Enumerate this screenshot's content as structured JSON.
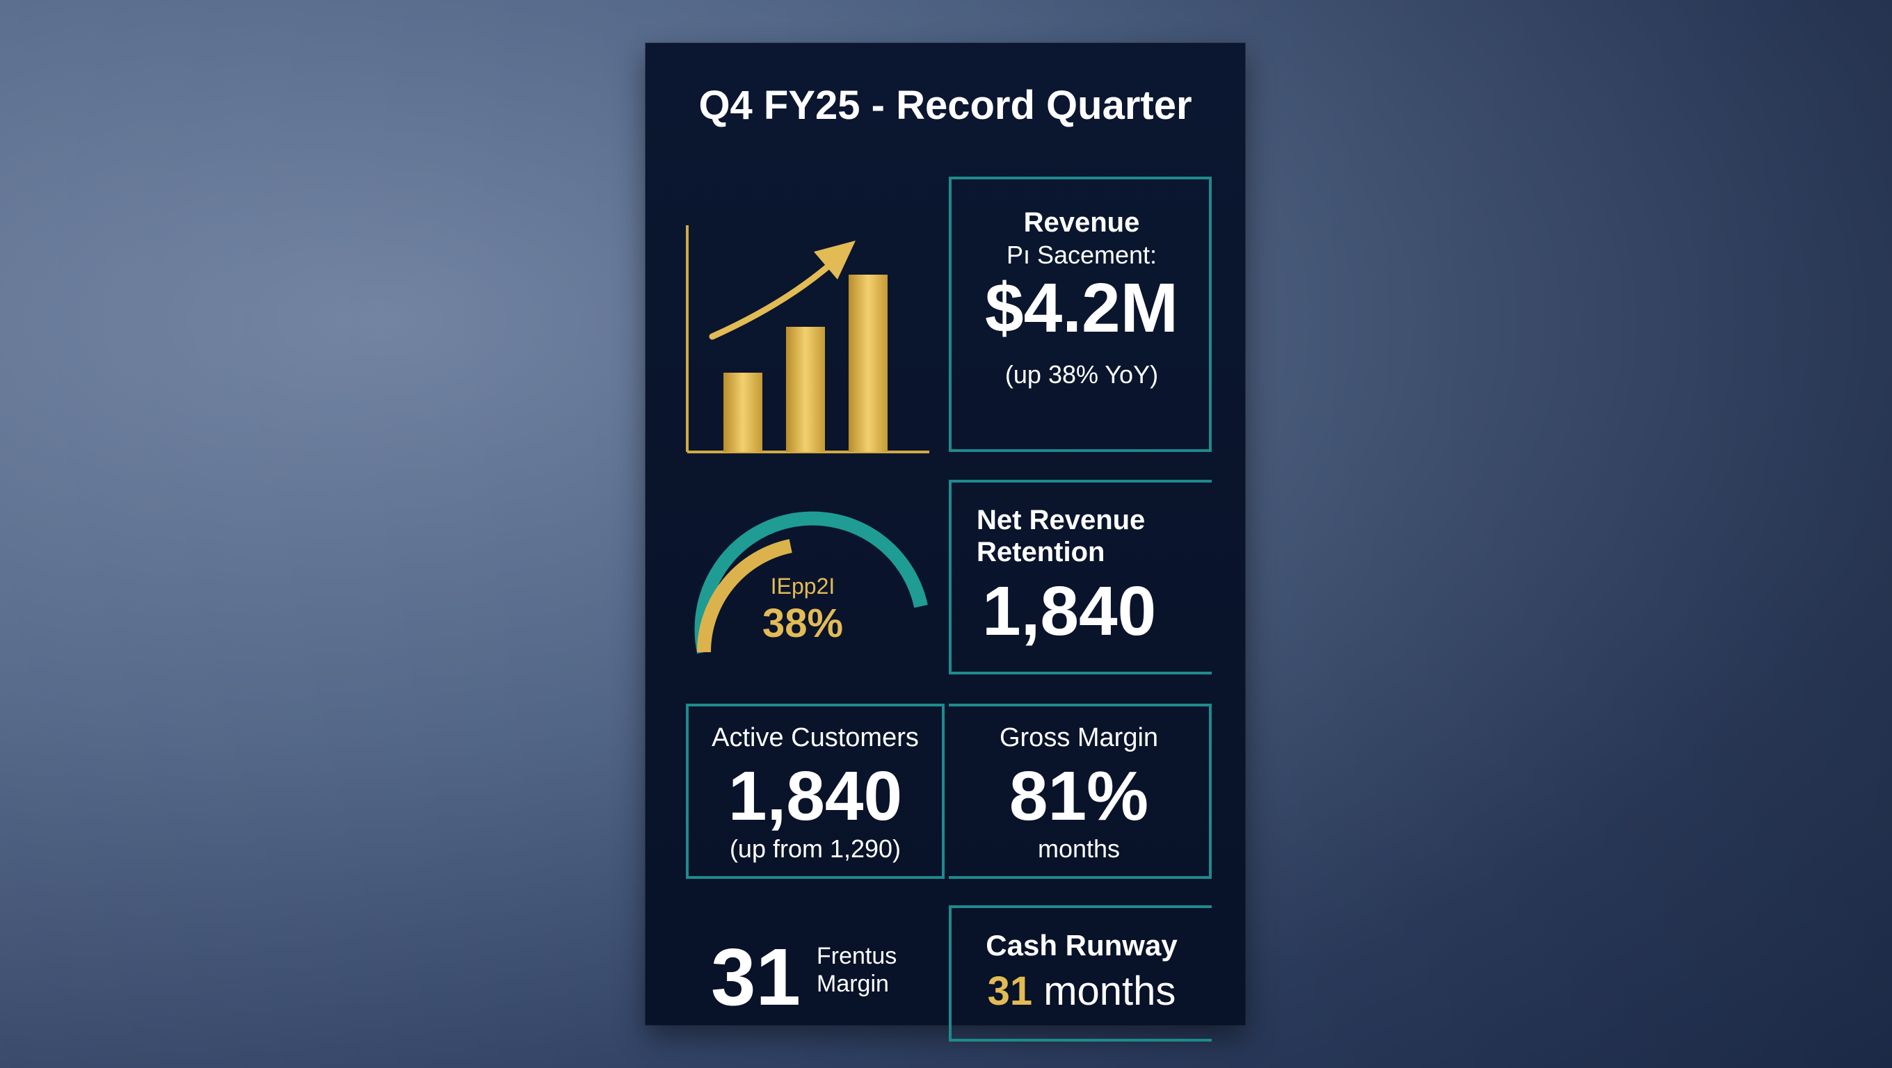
{
  "title": "Q4 FY25 - Record Quarter",
  "colors": {
    "gold": "#e3bb55",
    "teal": "#1f8a8c",
    "card": "#0b1730",
    "text": "#ffffff"
  },
  "revenue": {
    "heading": "Revenue",
    "sublabel": "Pı Sacement:",
    "value": "$4.2M",
    "change": "(up 38% YoY)"
  },
  "growth_chart": {
    "bar_levels": [
      0.38,
      0.6,
      0.85
    ],
    "icon": "trend-arrow-icon"
  },
  "gauge": {
    "label": "ΙEpp2Ι",
    "value": "38%",
    "fill_fraction": 0.38
  },
  "nrr": {
    "heading_line1": "Net Revenue",
    "heading_line2": "Retention",
    "value": "1,840"
  },
  "customers": {
    "heading": "Active Customers",
    "value": "1,840",
    "sub": "(up from 1,290)"
  },
  "gross_margin": {
    "heading": "Gross Margin",
    "value": "81%",
    "sub": "months"
  },
  "margin_stat": {
    "value": "31",
    "label_line1": "Frentus",
    "label_line2": "Margin"
  },
  "runway": {
    "heading": "Cash Runway",
    "value": "31",
    "unit": "months"
  }
}
